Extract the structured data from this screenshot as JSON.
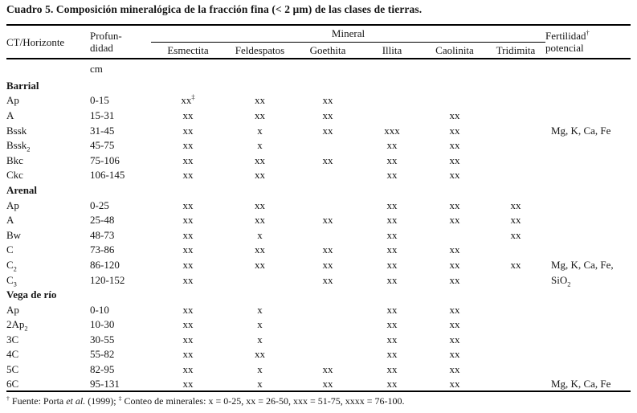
{
  "title": "Cuadro 5. Composición mineralógica de la fracción fina (< 2 µm) de las clases de tierras.",
  "colors": {
    "background": "#ffffff",
    "text": "#151515",
    "rule": "#000000"
  },
  "table": {
    "headers": {
      "ct_horizonte": "CT/Horizonte",
      "profundidad": [
        "Profun-",
        "didad"
      ],
      "mineral_group": "Mineral",
      "minerals": [
        "Esmectita",
        "Feldespatos",
        "Goethita",
        "Illita",
        "Caolinita",
        "Tridimita"
      ],
      "fertilidad": [
        "Fertilidad^†",
        "potencial"
      ],
      "depth_unit": "cm"
    },
    "sections": [
      {
        "name": "Barrial",
        "rows": [
          {
            "horizonte": "Ap",
            "profundidad": "0-15",
            "cells": [
              "xx^‡",
              "xx",
              "xx",
              "",
              "",
              ""
            ],
            "fertilidad": ""
          },
          {
            "horizonte": "A",
            "profundidad": "15-31",
            "cells": [
              "xx",
              "xx",
              "xx",
              "",
              "xx",
              ""
            ],
            "fertilidad": ""
          },
          {
            "horizonte": "Bssk",
            "profundidad": "31-45",
            "cells": [
              "xx",
              "x",
              "xx",
              "xxx",
              "xx",
              ""
            ],
            "fertilidad": "Mg, K, Ca, Fe"
          },
          {
            "horizonte": "Bssk~2",
            "profundidad": "45-75",
            "cells": [
              "xx",
              "x",
              "",
              "xx",
              "xx",
              ""
            ],
            "fertilidad": ""
          },
          {
            "horizonte": "Bkc",
            "profundidad": "75-106",
            "cells": [
              "xx",
              "xx",
              "xx",
              "xx",
              "xx",
              ""
            ],
            "fertilidad": ""
          },
          {
            "horizonte": "Ckc",
            "profundidad": "106-145",
            "cells": [
              "xx",
              "xx",
              "",
              "xx",
              "xx",
              ""
            ],
            "fertilidad": ""
          }
        ]
      },
      {
        "name": "Arenal",
        "rows": [
          {
            "horizonte": "Ap",
            "profundidad": "0-25",
            "cells": [
              "xx",
              "xx",
              "",
              "xx",
              "xx",
              "xx"
            ],
            "fertilidad": ""
          },
          {
            "horizonte": "A",
            "profundidad": "25-48",
            "cells": [
              "xx",
              "xx",
              "xx",
              "xx",
              "xx",
              "xx"
            ],
            "fertilidad": ""
          },
          {
            "horizonte": "Bw",
            "profundidad": "48-73",
            "cells": [
              "xx",
              "x",
              "",
              "xx",
              "",
              "xx"
            ],
            "fertilidad": ""
          },
          {
            "horizonte": "C",
            "profundidad": "73-86",
            "cells": [
              "xx",
              "xx",
              "xx",
              "xx",
              "xx",
              ""
            ],
            "fertilidad": ""
          },
          {
            "horizonte": "C~2",
            "profundidad": "86-120",
            "cells": [
              "xx",
              "xx",
              "xx",
              "xx",
              "xx",
              "xx"
            ],
            "fertilidad": "Mg, K, Ca, Fe,"
          },
          {
            "horizonte": "C~3",
            "profundidad": "120-152",
            "cells": [
              "xx",
              "",
              "xx",
              "xx",
              "xx",
              ""
            ],
            "fertilidad": "SiO~2"
          }
        ]
      },
      {
        "name": "Vega de río",
        "rows": [
          {
            "horizonte": "Ap",
            "profundidad": "0-10",
            "cells": [
              "xx",
              "x",
              "",
              "xx",
              "xx",
              ""
            ],
            "fertilidad": ""
          },
          {
            "horizonte": "2Ap~2",
            "profundidad": "10-30",
            "cells": [
              "xx",
              "x",
              "",
              "xx",
              "xx",
              ""
            ],
            "fertilidad": ""
          },
          {
            "horizonte": "3C",
            "profundidad": "30-55",
            "cells": [
              "xx",
              "x",
              "",
              "xx",
              "xx",
              ""
            ],
            "fertilidad": ""
          },
          {
            "horizonte": "4C",
            "profundidad": "55-82",
            "cells": [
              "xx",
              "xx",
              "",
              "xx",
              "xx",
              ""
            ],
            "fertilidad": ""
          },
          {
            "horizonte": "5C",
            "profundidad": "82-95",
            "cells": [
              "xx",
              "x",
              "xx",
              "xx",
              "xx",
              ""
            ],
            "fertilidad": ""
          },
          {
            "horizonte": "6C",
            "profundidad": "95-131",
            "cells": [
              "xx",
              "x",
              "xx",
              "xx",
              "xx",
              ""
            ],
            "fertilidad": "Mg, K, Ca, Fe"
          }
        ]
      }
    ]
  },
  "footnote": {
    "dagger": "†",
    "source_pre": " Fuente: Porta ",
    "source_italic": "et al.",
    "source_post": " (1999); ",
    "double_dagger": "‡",
    "legend": " Conteo de minerales: x = 0-25, xx = 26-50, xxx = 51-75, xxxx = 76-100."
  }
}
